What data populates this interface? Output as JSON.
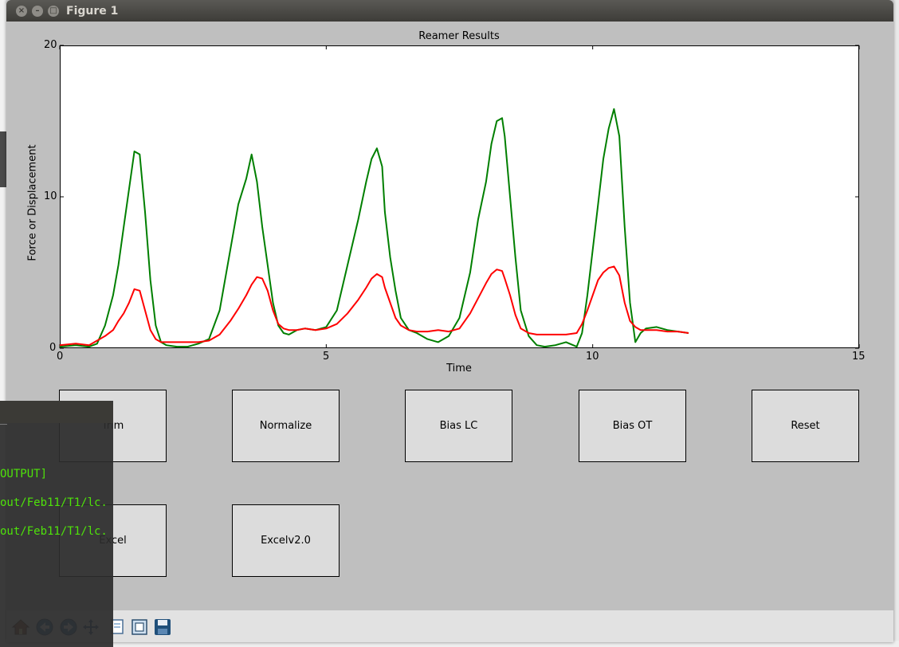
{
  "window": {
    "title": "Figure 1"
  },
  "chart_data": {
    "type": "line",
    "title": "Reamer Results",
    "xlabel": "Time",
    "ylabel": "Force or Displacement",
    "xlim": [
      0,
      15
    ],
    "ylim": [
      0,
      20
    ],
    "xticks": [
      "0",
      "5",
      "10",
      "15"
    ],
    "yticks": [
      "0",
      "10",
      "20"
    ],
    "grid": false,
    "colors": {
      "green": "#007f00",
      "red": "#ff0000"
    },
    "series": [
      {
        "color": "#007f00",
        "x": [
          0,
          0.3,
          0.55,
          0.7,
          0.85,
          1.0,
          1.1,
          1.2,
          1.3,
          1.4,
          1.5,
          1.6,
          1.7,
          1.8,
          1.9,
          2.0,
          2.2,
          2.4,
          2.6,
          2.8,
          3.0,
          3.2,
          3.35,
          3.5,
          3.6,
          3.7,
          3.8,
          3.9,
          4.0,
          4.1,
          4.2,
          4.3,
          4.45,
          4.6,
          4.8,
          5.0,
          5.2,
          5.4,
          5.6,
          5.75,
          5.85,
          5.95,
          6.05,
          6.1,
          6.2,
          6.3,
          6.4,
          6.55,
          6.7,
          6.9,
          7.1,
          7.3,
          7.5,
          7.7,
          7.85,
          8.0,
          8.1,
          8.2,
          8.3,
          8.35,
          8.45,
          8.55,
          8.65,
          8.8,
          8.95,
          9.1,
          9.3,
          9.5,
          9.7,
          9.8,
          9.9,
          10.0,
          10.1,
          10.2,
          10.3,
          10.4,
          10.5,
          10.6,
          10.7,
          10.8,
          10.9,
          11.0,
          11.2,
          11.4,
          11.6,
          11.8
        ],
        "y": [
          0.1,
          0.2,
          0.1,
          0.3,
          1.5,
          3.5,
          5.5,
          8.0,
          10.5,
          13.0,
          12.8,
          9.0,
          4.5,
          1.5,
          0.4,
          0.2,
          0.1,
          0.1,
          0.3,
          0.6,
          2.5,
          6.5,
          9.5,
          11.2,
          12.8,
          11.0,
          8.0,
          5.5,
          3.0,
          1.5,
          1.0,
          0.9,
          1.2,
          1.3,
          1.2,
          1.4,
          2.5,
          5.5,
          8.5,
          11.0,
          12.5,
          13.2,
          12.0,
          9.0,
          6.0,
          3.8,
          2.0,
          1.2,
          1.0,
          0.6,
          0.4,
          0.8,
          2.0,
          5.0,
          8.5,
          11.0,
          13.5,
          15.0,
          15.2,
          14.0,
          10.0,
          6.0,
          2.5,
          0.8,
          0.2,
          0.1,
          0.2,
          0.4,
          0.1,
          1.0,
          3.5,
          6.5,
          9.5,
          12.5,
          14.5,
          15.8,
          14.0,
          8.0,
          3.0,
          0.4,
          1.0,
          1.3,
          1.4,
          1.2,
          1.1,
          1.0
        ]
      },
      {
        "color": "#ff0000",
        "x": [
          0,
          0.3,
          0.55,
          0.7,
          0.85,
          1.0,
          1.1,
          1.2,
          1.3,
          1.4,
          1.5,
          1.6,
          1.7,
          1.8,
          1.9,
          2.0,
          2.2,
          2.4,
          2.6,
          2.8,
          3.0,
          3.2,
          3.35,
          3.5,
          3.6,
          3.7,
          3.8,
          3.9,
          4.0,
          4.1,
          4.2,
          4.3,
          4.45,
          4.6,
          4.8,
          5.0,
          5.2,
          5.4,
          5.6,
          5.75,
          5.85,
          5.95,
          6.05,
          6.1,
          6.2,
          6.3,
          6.4,
          6.55,
          6.7,
          6.9,
          7.1,
          7.3,
          7.5,
          7.7,
          7.85,
          8.0,
          8.1,
          8.2,
          8.3,
          8.35,
          8.45,
          8.55,
          8.65,
          8.8,
          8.95,
          9.1,
          9.3,
          9.5,
          9.7,
          9.8,
          9.9,
          10.0,
          10.1,
          10.2,
          10.3,
          10.4,
          10.5,
          10.6,
          10.7,
          10.8,
          10.9,
          11.0,
          11.2,
          11.4,
          11.6,
          11.8
        ],
        "y": [
          0.2,
          0.3,
          0.2,
          0.5,
          0.8,
          1.2,
          1.8,
          2.3,
          3.0,
          3.9,
          3.8,
          2.5,
          1.2,
          0.6,
          0.4,
          0.4,
          0.4,
          0.4,
          0.4,
          0.5,
          0.9,
          1.8,
          2.6,
          3.5,
          4.2,
          4.7,
          4.6,
          3.8,
          2.5,
          1.6,
          1.3,
          1.2,
          1.2,
          1.3,
          1.2,
          1.3,
          1.6,
          2.3,
          3.2,
          4.0,
          4.6,
          4.9,
          4.7,
          4.0,
          3.0,
          2.0,
          1.5,
          1.2,
          1.1,
          1.1,
          1.2,
          1.1,
          1.3,
          2.3,
          3.3,
          4.3,
          4.9,
          5.2,
          5.1,
          4.6,
          3.5,
          2.2,
          1.3,
          1.0,
          0.9,
          0.9,
          0.9,
          0.9,
          1.0,
          1.6,
          2.5,
          3.5,
          4.5,
          5.0,
          5.3,
          5.4,
          4.8,
          3.0,
          1.8,
          1.4,
          1.2,
          1.2,
          1.2,
          1.1,
          1.1,
          1.0
        ]
      }
    ]
  },
  "buttons": {
    "trim": "Trim",
    "normalize": "Normalize",
    "bias_lc": "Bias LC",
    "bias_ot": "Bias OT",
    "reset": "Reset",
    "excel": "Excel",
    "excel_v2": "Excelv2.0"
  },
  "toolbar": {
    "icons": [
      "home-icon",
      "back-icon",
      "forward-icon",
      "pan-icon",
      "zoom-icon",
      "subplots-icon",
      "save-icon"
    ]
  },
  "terminal": {
    "lines": [
      "OUTPUT]",
      "out/Feb11/T1/lc.",
      "out/Feb11/T1/lc."
    ]
  }
}
